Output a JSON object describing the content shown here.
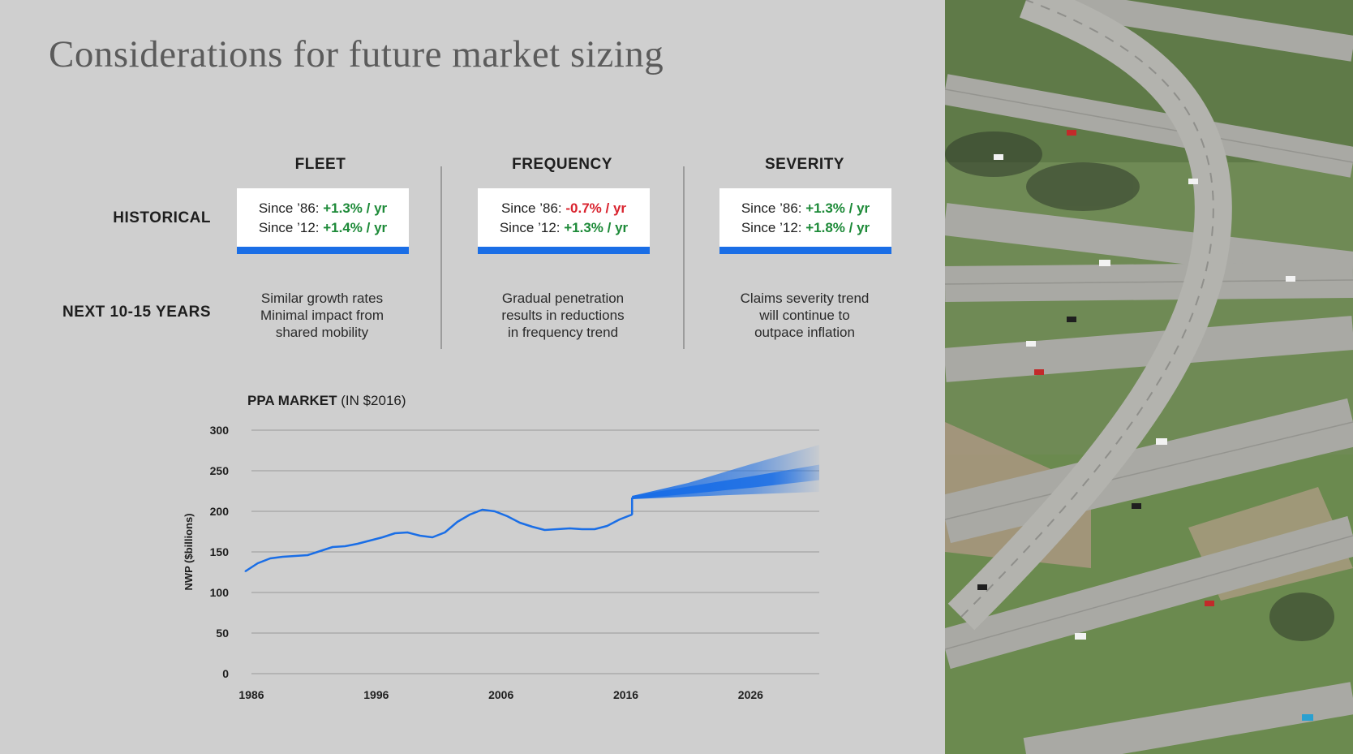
{
  "title": "Considerations for future market sizing",
  "columns": [
    {
      "label": "FLEET"
    },
    {
      "label": "FREQUENCY"
    },
    {
      "label": "SEVERITY"
    }
  ],
  "rows": {
    "historical": "HISTORICAL",
    "next": "NEXT 10-15 YEARS"
  },
  "historical": [
    {
      "line1_prefix": "Since ’86: ",
      "line1_value": "+1.3% / yr",
      "line2_prefix": "Since ’12: ",
      "line2_value": "+1.4% / yr"
    },
    {
      "line1_prefix": "Since ’86: ",
      "line1_value": "-0.7% / yr",
      "line2_prefix": "Since ’12: ",
      "line2_value": "+1.3% / yr"
    },
    {
      "line1_prefix": "Since ’86: ",
      "line1_value": "+1.3% / yr",
      "line2_prefix": "Since ’12: ",
      "line2_value": "+1.8% / yr"
    }
  ],
  "projections": [
    [
      "Similar growth rates",
      "Minimal impact from",
      "shared mobility"
    ],
    [
      "Gradual penetration",
      "results in reductions",
      "in frequency trend"
    ],
    [
      "Claims severity trend",
      "will continue to",
      "outpace inflation"
    ]
  ],
  "colors": {
    "accent_blue": "#1a6ee6",
    "positive_green": "#1d8a38",
    "negative_red": "#d9232e",
    "panel_gray": "#cfcfcf"
  },
  "photo": {
    "icon": "highway-interchange-aerial-photo"
  },
  "chart_data": {
    "type": "line",
    "title_bold": "PPA MARKET",
    "title_rest": " (IN $2016)",
    "ylabel": "NWP ($billions)",
    "xlabel": "",
    "ylim": [
      0,
      300
    ],
    "xlim": [
      1986,
      2031.5
    ],
    "yticks": [
      "0",
      "50",
      "100",
      "150",
      "200",
      "250",
      "300"
    ],
    "xticks": [
      "1986",
      "1996",
      "2006",
      "2016",
      "2026"
    ],
    "grid": true,
    "series": [
      {
        "x": [
          1985.5,
          1986.5,
          1987.5,
          1988.5,
          1989.5,
          1990.5,
          1991.5,
          1992.5,
          1993.5,
          1994.5,
          1995.5,
          1996.5,
          1997.5,
          1998.5,
          1999.5,
          2000.5,
          2001.5,
          2002.5,
          2003.5,
          2004.5,
          2005.5,
          2006.5,
          2007.5,
          2008.5,
          2009.5,
          2010.5,
          2011.5,
          2012.5,
          2013.5,
          2014.5,
          2015.5,
          2016.5
        ],
        "y": [
          126,
          136,
          142,
          144,
          145,
          146,
          151,
          156,
          157,
          160,
          164,
          168,
          173,
          174,
          170,
          168,
          174,
          187,
          196,
          202,
          200,
          194,
          186,
          181,
          177,
          178,
          179,
          178,
          178,
          182,
          190,
          196
        ]
      }
    ],
    "projection": {
      "x": [
        2016.5,
        2021,
        2026,
        2031.5
      ],
      "mid": [
        217,
        226,
        236,
        248
      ],
      "upper": [
        219,
        235,
        258,
        282
      ],
      "lower": [
        215,
        218,
        221,
        224
      ]
    }
  }
}
